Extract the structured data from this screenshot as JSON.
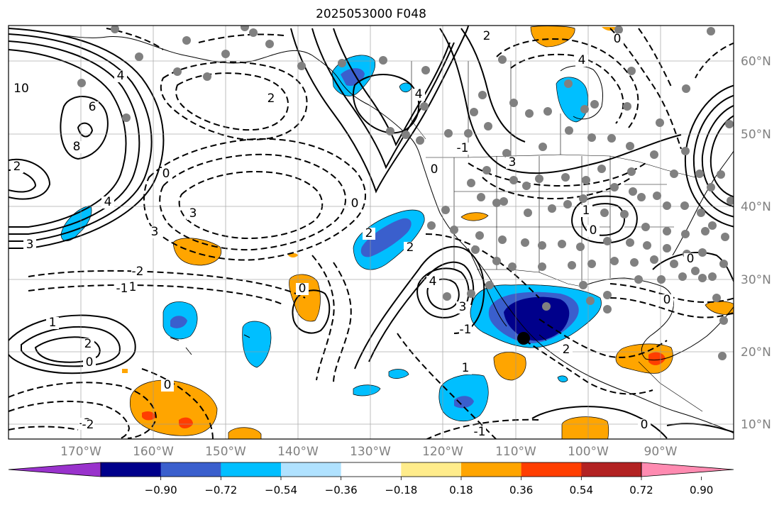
{
  "title": "2025053000 F048",
  "map": {
    "lon_labels": [
      "170°W",
      "160°W",
      "150°W",
      "140°W",
      "130°W",
      "120°W",
      "110°W",
      "100°W",
      "90°W"
    ],
    "lat_labels": [
      "60°N",
      "50°N",
      "40°N",
      "30°N",
      "20°N",
      "10°N"
    ],
    "contour_labels": [
      {
        "text": "10"
      },
      {
        "text": "8"
      },
      {
        "text": "6"
      },
      {
        "text": "4"
      },
      {
        "text": "4"
      },
      {
        "text": "3"
      },
      {
        "text": "2"
      },
      {
        "text": "0"
      },
      {
        "text": "3"
      },
      {
        "text": "3"
      },
      {
        "text": "2"
      },
      {
        "text": "-2"
      },
      {
        "text": "-1"
      },
      {
        "text": "-1"
      },
      {
        "text": "-2"
      },
      {
        "text": "1"
      },
      {
        "text": "2"
      },
      {
        "text": "0"
      },
      {
        "text": "0"
      },
      {
        "text": "0"
      },
      {
        "text": "2"
      },
      {
        "text": "4"
      },
      {
        "text": "0"
      },
      {
        "text": "2"
      },
      {
        "text": "2"
      },
      {
        "text": "4"
      },
      {
        "text": "3"
      },
      {
        "text": "0"
      },
      {
        "text": "-1"
      },
      {
        "text": "1"
      },
      {
        "text": "-1"
      },
      {
        "text": "4"
      },
      {
        "text": "0"
      },
      {
        "text": "3"
      },
      {
        "text": "1"
      },
      {
        "text": "0"
      },
      {
        "text": "0"
      },
      {
        "text": "0"
      },
      {
        "text": "0"
      },
      {
        "text": "-1"
      },
      {
        "text": "2"
      },
      {
        "text": "-2"
      }
    ]
  },
  "colorbar": {
    "tick_labels": [
      "−0.90",
      "−0.72",
      "−0.54",
      "−0.36",
      "−0.18",
      "0.18",
      "0.36",
      "0.54",
      "0.72",
      "0.90"
    ],
    "colors": [
      "#9932CC",
      "#00008B",
      "#3A5FCD",
      "#00BFFF",
      "#B0E2FF",
      "#FFFFFF",
      "#FFEC8B",
      "#FFA500",
      "#FF3E00",
      "#B22222",
      "#FF8BB1"
    ]
  },
  "marker_color": "#000000",
  "station_color": "#808080"
}
